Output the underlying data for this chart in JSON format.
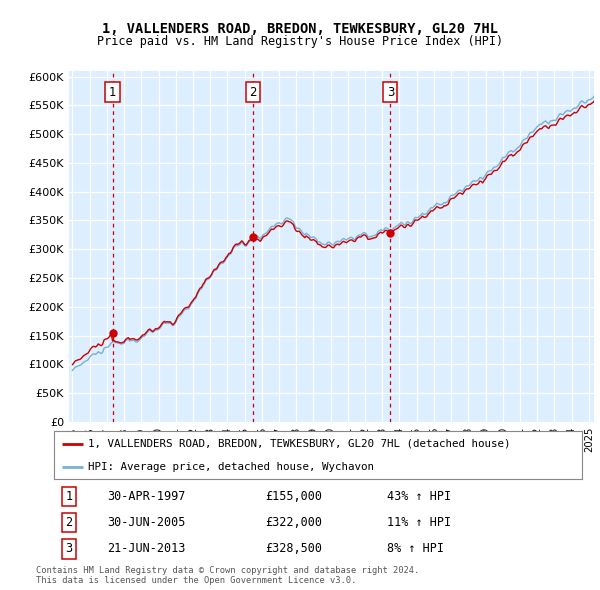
{
  "title": "1, VALLENDERS ROAD, BREDON, TEWKESBURY, GL20 7HL",
  "subtitle": "Price paid vs. HM Land Registry's House Price Index (HPI)",
  "ylabel_ticks": [
    "£0",
    "£50K",
    "£100K",
    "£150K",
    "£200K",
    "£250K",
    "£300K",
    "£350K",
    "£400K",
    "£450K",
    "£500K",
    "£550K",
    "£600K"
  ],
  "ytick_values": [
    0,
    50000,
    100000,
    150000,
    200000,
    250000,
    300000,
    350000,
    400000,
    450000,
    500000,
    550000,
    600000
  ],
  "ylim": [
    0,
    610000
  ],
  "xlim_start": 1994.8,
  "xlim_end": 2025.3,
  "price_paid": [
    {
      "label": "1",
      "date": 1997.33,
      "price": 155000
    },
    {
      "label": "2",
      "date": 2005.5,
      "price": 322000
    },
    {
      "label": "3",
      "date": 2013.47,
      "price": 328500
    }
  ],
  "table_rows": [
    {
      "num": "1",
      "date": "30-APR-1997",
      "price": "£155,000",
      "hpi": "43% ↑ HPI"
    },
    {
      "num": "2",
      "date": "30-JUN-2005",
      "price": "£322,000",
      "hpi": "11% ↑ HPI"
    },
    {
      "num": "3",
      "date": "21-JUN-2013",
      "price": "£328,500",
      "hpi": "8% ↑ HPI"
    }
  ],
  "legend_line1": "1, VALLENDERS ROAD, BREDON, TEWKESBURY, GL20 7HL (detached house)",
  "legend_line2": "HPI: Average price, detached house, Wychavon",
  "footer1": "Contains HM Land Registry data © Crown copyright and database right 2024.",
  "footer2": "This data is licensed under the Open Government Licence v3.0.",
  "line_color_red": "#cc0000",
  "line_color_blue": "#7ab0d4",
  "bg_color": "#ddeeff",
  "grid_color": "#ffffff",
  "marker_box_color": "#cc0000",
  "fig_width": 6.0,
  "fig_height": 5.9,
  "dpi": 100
}
